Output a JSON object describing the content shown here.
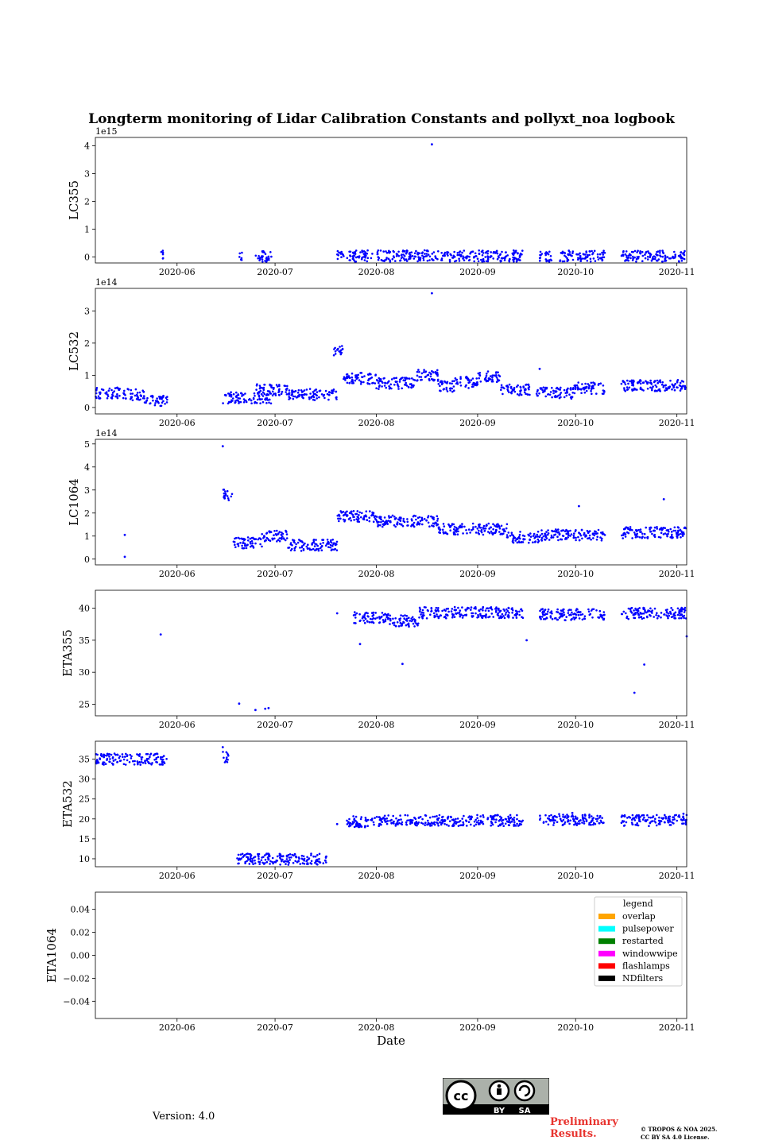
{
  "figure": {
    "title": "Longterm monitoring of Lidar Calibration Constants and pollyxt_noa logbook",
    "xlabel": "Date",
    "version_text": "Version: 4.0",
    "preliminary_line1": "Preliminary",
    "preliminary_line2": "Results.",
    "copyright_line1": "© TROPOS & NOA 2025.",
    "copyright_line2": "CC BY SA 4.0 License.",
    "license_badge": {
      "top_label": "cc",
      "by_label": "BY",
      "sa_label": "SA"
    },
    "colors": {
      "points": "#0000ff",
      "prelim": "#e8332e"
    }
  },
  "chart_data": [
    {
      "type": "scatter",
      "ylabel": "LC355",
      "x_ticks": [
        "2020-06",
        "2020-07",
        "2020-08",
        "2020-09",
        "2020-10",
        "2020-11"
      ],
      "x_range": [
        "2020-05-07",
        "2020-11-04"
      ],
      "ylim": [
        -0.22,
        4.3
      ],
      "yticks": [
        0,
        1,
        2,
        3,
        4
      ],
      "ytick_labels": [
        "0",
        "1",
        "2",
        "3",
        "4"
      ],
      "offset_label": "1e15",
      "series": [
        {
          "name": "LC355",
          "segments": [
            {
              "start": "2020-05-27",
              "end": "2020-05-28",
              "value": 0.02
            },
            {
              "start": "2020-06-20",
              "end": "2020-06-21",
              "value": 0.01
            },
            {
              "start": "2020-06-25",
              "end": "2020-06-30",
              "value": 0.02
            },
            {
              "start": "2020-07-20",
              "end": "2020-07-22",
              "value": 0.03
            },
            {
              "start": "2020-07-23",
              "end": "2020-07-31",
              "value": 0.03
            },
            {
              "start": "2020-08-01",
              "end": "2020-08-14",
              "value": 0.03
            },
            {
              "start": "2020-08-14",
              "end": "2020-08-19",
              "value": 0.05
            },
            {
              "start": "2020-08-19",
              "end": "2020-09-15",
              "value": 0.03
            },
            {
              "start": "2020-09-20",
              "end": "2020-09-24",
              "value": 0.03
            },
            {
              "start": "2020-09-26",
              "end": "2020-10-10",
              "value": 0.03
            },
            {
              "start": "2020-10-15",
              "end": "2020-11-04",
              "value": 0.03
            }
          ],
          "points": [
            {
              "x": "2020-08-18",
              "y": 4.05
            }
          ]
        }
      ]
    },
    {
      "type": "scatter",
      "ylabel": "LC532",
      "x_ticks": [
        "2020-06",
        "2020-07",
        "2020-08",
        "2020-09",
        "2020-10",
        "2020-11"
      ],
      "x_range": [
        "2020-05-07",
        "2020-11-04"
      ],
      "ylim": [
        -0.2,
        3.7
      ],
      "yticks": [
        0,
        1,
        2,
        3
      ],
      "ytick_labels": [
        "0",
        "1",
        "2",
        "3"
      ],
      "offset_label": "1e14",
      "series": [
        {
          "name": "LC532",
          "segments": [
            {
              "start": "2020-05-07",
              "end": "2020-05-15",
              "value": 0.45
            },
            {
              "start": "2020-05-15",
              "end": "2020-05-22",
              "value": 0.4
            },
            {
              "start": "2020-05-22",
              "end": "2020-05-29",
              "value": 0.22
            },
            {
              "start": "2020-06-15",
              "end": "2020-06-30",
              "value": 0.3
            },
            {
              "start": "2020-06-25",
              "end": "2020-07-05",
              "value": 0.55
            },
            {
              "start": "2020-07-05",
              "end": "2020-07-20",
              "value": 0.4
            },
            {
              "start": "2020-07-19",
              "end": "2020-07-22",
              "value": 1.75
            },
            {
              "start": "2020-07-22",
              "end": "2020-08-01",
              "value": 0.9
            },
            {
              "start": "2020-08-01",
              "end": "2020-08-13",
              "value": 0.75
            },
            {
              "start": "2020-08-13",
              "end": "2020-08-20",
              "value": 1.0
            },
            {
              "start": "2020-08-20",
              "end": "2020-08-25",
              "value": 0.65
            },
            {
              "start": "2020-08-25",
              "end": "2020-09-01",
              "value": 0.78
            },
            {
              "start": "2020-09-01",
              "end": "2020-09-08",
              "value": 0.95
            },
            {
              "start": "2020-09-08",
              "end": "2020-09-17",
              "value": 0.55
            },
            {
              "start": "2020-09-19",
              "end": "2020-09-30",
              "value": 0.45
            },
            {
              "start": "2020-09-30",
              "end": "2020-10-10",
              "value": 0.6
            },
            {
              "start": "2020-10-15",
              "end": "2020-11-04",
              "value": 0.68
            }
          ],
          "points": [
            {
              "x": "2020-08-18",
              "y": 3.55
            },
            {
              "x": "2020-09-20",
              "y": 1.2
            }
          ]
        }
      ]
    },
    {
      "type": "scatter",
      "ylabel": "LC1064",
      "x_ticks": [
        "2020-06",
        "2020-07",
        "2020-08",
        "2020-09",
        "2020-10",
        "2020-11"
      ],
      "x_range": [
        "2020-05-07",
        "2020-11-04"
      ],
      "ylim": [
        -0.25,
        5.2
      ],
      "yticks": [
        0,
        1,
        2,
        3,
        4,
        5
      ],
      "ytick_labels": [
        "0",
        "1",
        "2",
        "3",
        "4",
        "5"
      ],
      "offset_label": "1e14",
      "series": [
        {
          "name": "LC1064",
          "segments": [
            {
              "start": "2020-06-15",
              "end": "2020-06-18",
              "value": 2.8
            },
            {
              "start": "2020-06-18",
              "end": "2020-06-27",
              "value": 0.7
            },
            {
              "start": "2020-06-27",
              "end": "2020-07-05",
              "value": 1.0
            },
            {
              "start": "2020-07-05",
              "end": "2020-07-20",
              "value": 0.6
            },
            {
              "start": "2020-07-20",
              "end": "2020-08-01",
              "value": 1.85
            },
            {
              "start": "2020-08-01",
              "end": "2020-08-20",
              "value": 1.65
            },
            {
              "start": "2020-08-20",
              "end": "2020-09-10",
              "value": 1.3
            },
            {
              "start": "2020-09-10",
              "end": "2020-09-20",
              "value": 0.95
            },
            {
              "start": "2020-09-20",
              "end": "2020-10-10",
              "value": 1.05
            },
            {
              "start": "2020-10-15",
              "end": "2020-11-04",
              "value": 1.15
            }
          ],
          "points": [
            {
              "x": "2020-05-16",
              "y": 1.05
            },
            {
              "x": "2020-05-16",
              "y": 0.1
            },
            {
              "x": "2020-06-15",
              "y": 4.9
            },
            {
              "x": "2020-10-28",
              "y": 2.6
            },
            {
              "x": "2020-10-02",
              "y": 2.3
            }
          ]
        }
      ]
    },
    {
      "type": "scatter",
      "ylabel": "ETA355",
      "x_ticks": [
        "2020-06",
        "2020-07",
        "2020-08",
        "2020-09",
        "2020-10",
        "2020-11"
      ],
      "x_range": [
        "2020-05-07",
        "2020-11-04"
      ],
      "ylim": [
        23.2,
        42.8
      ],
      "yticks": [
        25,
        30,
        35,
        40
      ],
      "ytick_labels": [
        "25",
        "30",
        "35",
        "40"
      ],
      "offset_label": "",
      "series": [
        {
          "name": "ETA355",
          "segments": [
            {
              "start": "2020-07-25",
              "end": "2020-08-05",
              "value": 38.5
            },
            {
              "start": "2020-08-05",
              "end": "2020-08-14",
              "value": 38.0
            },
            {
              "start": "2020-08-14",
              "end": "2020-09-15",
              "value": 39.3
            },
            {
              "start": "2020-09-20",
              "end": "2020-10-10",
              "value": 39.0
            },
            {
              "start": "2020-10-15",
              "end": "2020-11-04",
              "value": 39.2
            }
          ],
          "points": [
            {
              "x": "2020-05-27",
              "y": 35.9
            },
            {
              "x": "2020-06-20",
              "y": 25.1
            },
            {
              "x": "2020-06-25",
              "y": 24.1
            },
            {
              "x": "2020-06-28",
              "y": 24.3
            },
            {
              "x": "2020-06-29",
              "y": 24.4
            },
            {
              "x": "2020-07-20",
              "y": 39.2
            },
            {
              "x": "2020-08-09",
              "y": 31.3
            },
            {
              "x": "2020-10-19",
              "y": 26.8
            },
            {
              "x": "2020-10-22",
              "y": 31.2
            },
            {
              "x": "2020-07-27",
              "y": 34.4
            },
            {
              "x": "2020-09-16",
              "y": 35.0
            },
            {
              "x": "2020-11-04",
              "y": 35.6
            }
          ]
        }
      ]
    },
    {
      "type": "scatter",
      "ylabel": "ETA532",
      "x_ticks": [
        "2020-06",
        "2020-07",
        "2020-08",
        "2020-09",
        "2020-10",
        "2020-11"
      ],
      "x_range": [
        "2020-05-07",
        "2020-11-04"
      ],
      "ylim": [
        8.0,
        39.5
      ],
      "yticks": [
        10,
        15,
        20,
        25,
        30,
        35
      ],
      "ytick_labels": [
        "10",
        "15",
        "20",
        "25",
        "30",
        "35"
      ],
      "offset_label": "",
      "series": [
        {
          "name": "ETA532",
          "segments": [
            {
              "start": "2020-05-07",
              "end": "2020-05-29",
              "value": 35.0
            },
            {
              "start": "2020-06-15",
              "end": "2020-06-17",
              "value": 35.5
            },
            {
              "start": "2020-06-19",
              "end": "2020-07-17",
              "value": 9.9
            },
            {
              "start": "2020-07-23",
              "end": "2020-08-01",
              "value": 19.3
            },
            {
              "start": "2020-08-01",
              "end": "2020-09-15",
              "value": 19.6
            },
            {
              "start": "2020-09-20",
              "end": "2020-10-10",
              "value": 19.8
            },
            {
              "start": "2020-10-15",
              "end": "2020-11-04",
              "value": 19.6
            }
          ],
          "points": [
            {
              "x": "2020-06-15",
              "y": 38.0
            },
            {
              "x": "2020-07-20",
              "y": 18.7
            },
            {
              "x": "2020-09-30",
              "y": 21.5
            },
            {
              "x": "2020-11-03",
              "y": 21.3
            }
          ]
        }
      ]
    },
    {
      "type": "scatter",
      "ylabel": "ETA1064",
      "x_ticks": [
        "2020-06",
        "2020-07",
        "2020-08",
        "2020-09",
        "2020-10",
        "2020-11"
      ],
      "x_range": [
        "2020-05-07",
        "2020-11-04"
      ],
      "ylim": [
        -0.055,
        0.055
      ],
      "yticks": [
        -0.04,
        -0.02,
        0.0,
        0.02,
        0.04
      ],
      "ytick_labels": [
        "−0.04",
        "−0.02",
        "0.00",
        "0.02",
        "0.04"
      ],
      "offset_label": "",
      "series": [],
      "legend": {
        "title": "legend",
        "location": "upper right",
        "entries": [
          {
            "label": "overlap",
            "color": "#ffa500"
          },
          {
            "label": "pulsepower",
            "color": "#00ffff"
          },
          {
            "label": "restarted",
            "color": "#008000"
          },
          {
            "label": "windowwipe",
            "color": "#ff00ff"
          },
          {
            "label": "flashlamps",
            "color": "#ff0000"
          },
          {
            "label": "NDfilters",
            "color": "#000000"
          }
        ]
      }
    }
  ]
}
